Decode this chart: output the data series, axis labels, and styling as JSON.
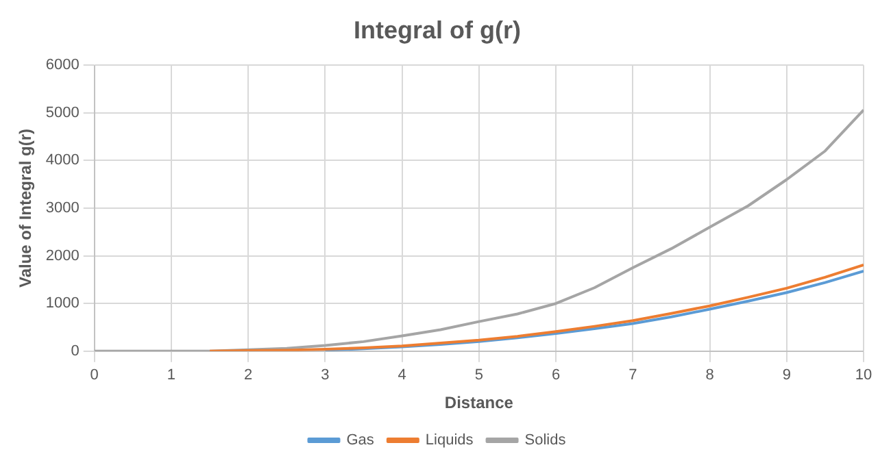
{
  "chart_data": {
    "type": "line",
    "title": "Integral of g(r)",
    "xlabel": "Distance",
    "ylabel": "Value of Integral g(r)",
    "x": [
      0,
      0.5,
      1,
      1.5,
      2,
      2.5,
      3,
      3.5,
      4,
      4.5,
      5,
      5.5,
      6,
      6.5,
      7,
      7.5,
      8,
      8.5,
      9,
      9.5,
      10
    ],
    "series": [
      {
        "name": "Gas",
        "color": "#5b9bd5",
        "values": [
          null,
          null,
          null,
          null,
          null,
          null,
          20,
          50,
          90,
          140,
          200,
          280,
          370,
          470,
          580,
          720,
          880,
          1050,
          1230,
          1440,
          1680
        ]
      },
      {
        "name": "Liquids",
        "color": "#ed7d31",
        "values": [
          null,
          null,
          null,
          0,
          10,
          20,
          40,
          70,
          110,
          170,
          230,
          310,
          410,
          520,
          640,
          790,
          950,
          1130,
          1320,
          1550,
          1810
        ]
      },
      {
        "name": "Solids",
        "color": "#a5a5a5",
        "values": [
          0,
          0,
          0,
          0,
          30,
          60,
          120,
          200,
          320,
          450,
          620,
          780,
          1000,
          1330,
          1750,
          2150,
          2600,
          3050,
          3600,
          4200,
          5060
        ]
      }
    ],
    "xlim": [
      0,
      10
    ],
    "xticks": [
      0,
      1,
      2,
      3,
      4,
      5,
      6,
      7,
      8,
      9,
      10
    ],
    "ylim": [
      0,
      6000
    ],
    "yticks": [
      0,
      1000,
      2000,
      3000,
      4000,
      5000,
      6000
    ],
    "grid": true,
    "legend": "bottom",
    "marker": "none",
    "line_style": "solid"
  }
}
